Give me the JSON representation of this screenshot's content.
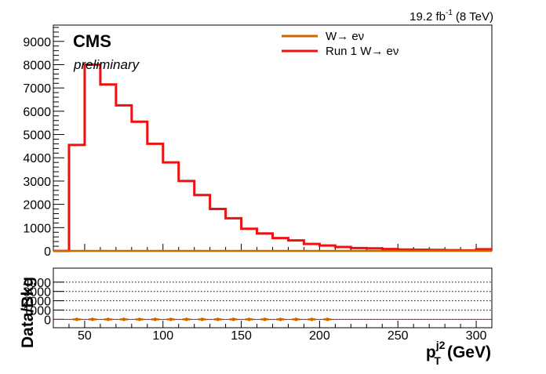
{
  "header": {
    "lumi_value": "19.2 fb",
    "lumi_exponent": "-1",
    "lumi_energy": "(8 TeV)"
  },
  "labels": {
    "experiment": "CMS",
    "status": "preliminary"
  },
  "legend": {
    "entries": [
      {
        "label": "W→ eν",
        "color": "#cc6600"
      },
      {
        "label": "Run 1 W→ eν",
        "color": "#ee1111"
      }
    ]
  },
  "axes": {
    "xlabel_main": "p",
    "xlabel_sup": "j2",
    "xlabel_sub": "T",
    "xlabel_unit": "(GeV)",
    "ratio_ylabel": "Data/Bkg"
  },
  "chart_data": [
    {
      "type": "line",
      "panel": "main",
      "xlim": [
        30,
        310
      ],
      "ylim": [
        0,
        9700
      ],
      "x_ticks": [
        50,
        100,
        150,
        200,
        250,
        300
      ],
      "y_ticks": [
        0,
        1000,
        2000,
        3000,
        4000,
        5000,
        6000,
        7000,
        8000,
        9000
      ],
      "series": [
        {
          "name": "Run 1 W→ eν",
          "color": "#ee1111",
          "bin_edges": [
            30,
            40,
            50,
            60,
            70,
            80,
            90,
            100,
            110,
            120,
            130,
            140,
            150,
            160,
            170,
            180,
            190,
            200,
            210,
            220,
            230,
            240,
            250,
            260,
            270,
            280,
            290,
            300,
            310
          ],
          "values": [
            0,
            4550,
            8000,
            7150,
            6250,
            5550,
            4600,
            3800,
            3000,
            2400,
            1800,
            1400,
            950,
            750,
            550,
            450,
            300,
            230,
            170,
            120,
            110,
            80,
            60,
            50,
            40,
            30,
            20,
            70
          ]
        },
        {
          "name": "W→ eν",
          "color": "#cc6600",
          "bin_edges": [
            30,
            310
          ],
          "values": [
            0
          ]
        }
      ]
    },
    {
      "type": "scatter",
      "panel": "ratio",
      "xlim": [
        30,
        310
      ],
      "ylim": [
        -900,
        5500
      ],
      "y_ticks": [
        0,
        1000,
        2000,
        3000,
        4000
      ],
      "gridlines_y": [
        0,
        1000,
        2000,
        3000,
        4000
      ],
      "series": [
        {
          "name": "",
          "color": "#cc6600",
          "x": [
            45,
            55,
            65,
            75,
            85,
            95,
            105,
            115,
            125,
            135,
            145,
            155,
            165,
            175,
            185,
            195,
            205
          ],
          "y": [
            0,
            0,
            0,
            0,
            0,
            0,
            0,
            0,
            0,
            0,
            0,
            0,
            0,
            0,
            0,
            0,
            0
          ]
        }
      ]
    }
  ]
}
